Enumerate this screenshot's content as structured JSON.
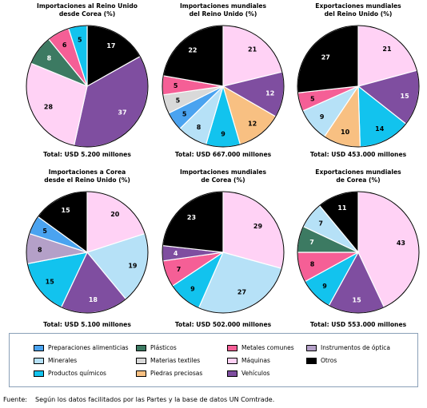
{
  "colors": {
    "prep_alim": "#4aa3f0",
    "plasticos": "#3c7a62",
    "metales": "#f55f96",
    "optica": "#b4a0c8",
    "minerales": "#b6e1f7",
    "textiles": "#d9d9d9",
    "maquinas": "#ffd2f5",
    "otros": "#000000",
    "quimicos": "#12c3ee",
    "piedras": "#f8c082",
    "vehiculos": "#7f4ea0"
  },
  "chart_data": [
    {
      "type": "pie",
      "title": "Importaciones al Reino Unido desde Corea (%)",
      "title_lines": [
        "Importaciones al Reino Unido",
        "desde Corea (%)"
      ],
      "total": "Total: USD 5.200 millones",
      "slices": [
        {
          "label": "Otros",
          "value": 17,
          "color": "otros"
        },
        {
          "label": "Vehículos",
          "value": 37,
          "color": "vehiculos"
        },
        {
          "label": "Máquinas",
          "value": 28,
          "color": "maquinas"
        },
        {
          "label": "Plásticos",
          "value": 8,
          "color": "plasticos"
        },
        {
          "label": "Metales comunes",
          "value": 6,
          "color": "metales"
        },
        {
          "label": "Productos químicos",
          "value": 5,
          "color": "quimicos"
        }
      ]
    },
    {
      "type": "pie",
      "title": "Importaciones mundiales del Reino Unido (%)",
      "title_lines": [
        "Importaciones mundiales",
        "del Reino Unido (%)"
      ],
      "total": "Total: USD 667.000 millones",
      "slices": [
        {
          "label": "Máquinas",
          "value": 21,
          "color": "maquinas"
        },
        {
          "label": "Vehículos",
          "value": 12,
          "color": "vehiculos"
        },
        {
          "label": "Piedras preciosas",
          "value": 12,
          "color": "piedras"
        },
        {
          "label": "Productos químicos",
          "value": 9,
          "color": "quimicos"
        },
        {
          "label": "Minerales",
          "value": 8,
          "color": "minerales"
        },
        {
          "label": "Preparaciones alimenticias",
          "value": 5,
          "color": "prep_alim"
        },
        {
          "label": "Materias textiles",
          "value": 5,
          "color": "textiles"
        },
        {
          "label": "Metales comunes",
          "value": 5,
          "color": "metales"
        },
        {
          "label": "Otros",
          "value": 22,
          "color": "otros"
        }
      ]
    },
    {
      "type": "pie",
      "title": "Exportaciones mundiales del Reino Unido (%)",
      "title_lines": [
        "Exportaciones mundiales",
        "del Reino Unido (%)"
      ],
      "total": "Total: USD 453.000 millones",
      "slices": [
        {
          "label": "Máquinas",
          "value": 21,
          "color": "maquinas"
        },
        {
          "label": "Vehículos",
          "value": 15,
          "color": "vehiculos"
        },
        {
          "label": "Productos químicos",
          "value": 14,
          "color": "quimicos"
        },
        {
          "label": "Piedras preciosas",
          "value": 10,
          "color": "piedras"
        },
        {
          "label": "Minerales",
          "value": 9,
          "color": "minerales"
        },
        {
          "label": "Metales comunes",
          "value": 5,
          "color": "metales"
        },
        {
          "label": "Otros",
          "value": 27,
          "color": "otros"
        }
      ]
    },
    {
      "type": "pie",
      "title": "Importaciones a Corea desde el Reino Unido (%)",
      "title_lines": [
        "Importaciones a Corea",
        "desde el Reino Unido (%)"
      ],
      "total": "Total: USD 5.100 millones",
      "slices": [
        {
          "label": "Máquinas",
          "value": 20,
          "color": "maquinas"
        },
        {
          "label": "Minerales",
          "value": 19,
          "color": "minerales"
        },
        {
          "label": "Vehículos",
          "value": 18,
          "color": "vehiculos"
        },
        {
          "label": "Productos químicos",
          "value": 15,
          "color": "quimicos"
        },
        {
          "label": "Instrumentos de óptica",
          "value": 8,
          "color": "optica"
        },
        {
          "label": "Preparaciones alimenticias",
          "value": 5,
          "color": "prep_alim"
        },
        {
          "label": "Otros",
          "value": 15,
          "color": "otros"
        }
      ]
    },
    {
      "type": "pie",
      "title": "Importaciones mundiales de Corea (%)",
      "title_lines": [
        "Importaciones mundiales",
        "de Corea (%)"
      ],
      "total": "Total: USD 502.000 millones",
      "slices": [
        {
          "label": "Máquinas",
          "value": 29,
          "color": "maquinas"
        },
        {
          "label": "Minerales",
          "value": 27,
          "color": "minerales"
        },
        {
          "label": "Productos químicos",
          "value": 9,
          "color": "quimicos"
        },
        {
          "label": "Metales comunes",
          "value": 7,
          "color": "metales"
        },
        {
          "label": "Vehículos",
          "value": 4,
          "color": "vehiculos"
        },
        {
          "label": "Otros",
          "value": 23,
          "color": "otros"
        }
      ]
    },
    {
      "type": "pie",
      "title": "Exportaciones mundiales de Corea (%)",
      "title_lines": [
        "Exportaciones mundiales",
        "de Corea (%)"
      ],
      "total": "Total:  USD 553.000 millones",
      "slices": [
        {
          "label": "Máquinas",
          "value": 43,
          "color": "maquinas"
        },
        {
          "label": "Vehículos",
          "value": 15,
          "color": "vehiculos"
        },
        {
          "label": "Productos químicos",
          "value": 9,
          "color": "quimicos"
        },
        {
          "label": "Metales comunes",
          "value": 8,
          "color": "metales"
        },
        {
          "label": "Plásticos",
          "value": 7,
          "color": "plasticos"
        },
        {
          "label": "Minerales",
          "value": 7,
          "color": "minerales"
        },
        {
          "label": "Otros",
          "value": 11,
          "color": "otros"
        }
      ]
    }
  ],
  "legend": [
    {
      "label": "Preparaciones alimenticias",
      "color": "prep_alim"
    },
    {
      "label": "Plásticos",
      "color": "plasticos"
    },
    {
      "label": "Metales comunes",
      "color": "metales"
    },
    {
      "label": "Instrumentos de óptica",
      "color": "optica"
    },
    {
      "label": "Minerales",
      "color": "minerales"
    },
    {
      "label": "Materias textiles",
      "color": "textiles"
    },
    {
      "label": "Máquinas",
      "color": "maquinas"
    },
    {
      "label": "Otros",
      "color": "otros"
    },
    {
      "label": "Productos químicos",
      "color": "quimicos"
    },
    {
      "label": "Piedras preciosas",
      "color": "piedras"
    },
    {
      "label": "Vehículos",
      "color": "vehiculos"
    }
  ],
  "source": {
    "label": "Fuente:",
    "text": "Según los datos facilitados por las Partes y la base de datos UN Comtrade."
  }
}
